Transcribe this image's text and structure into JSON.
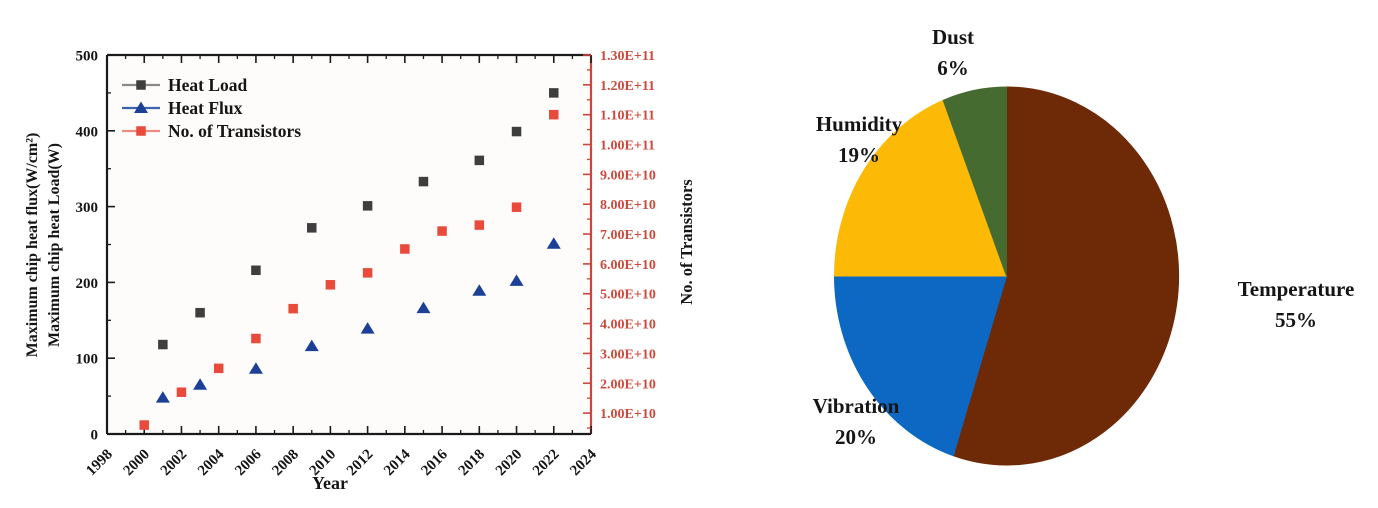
{
  "page": {
    "background": "#ffffff",
    "text_color": "#151515"
  },
  "chart_data": [
    {
      "type": "scatter",
      "title": "",
      "xlabel": "Year",
      "ylabel_left_lines": [
        "Maximum chip heat flux(W/cm²)",
        "Maximum chip heat Load(W)"
      ],
      "ylabel_right": "No. of Transistors",
      "xlim": [
        1998,
        2024
      ],
      "x_ticks": [
        1998,
        2000,
        2002,
        2004,
        2006,
        2008,
        2010,
        2012,
        2014,
        2016,
        2018,
        2020,
        2022,
        2024
      ],
      "ylim_left": [
        0,
        500
      ],
      "y_left_ticks": [
        0,
        100,
        200,
        300,
        400,
        500
      ],
      "ylim_right": [
        3000000000.0,
        130000000000.0
      ],
      "y_right_ticks": [
        10000000000.0,
        20000000000.0,
        30000000000.0,
        40000000000.0,
        50000000000.0,
        60000000000.0,
        70000000000.0,
        80000000000.0,
        90000000000.0,
        100000000000.0,
        110000000000.0,
        120000000000.0,
        130000000000.0
      ],
      "y_right_tick_labels": [
        "1.00E+10",
        "2.00E+10",
        "3.00E+10",
        "4.00E+10",
        "5.00E+10",
        "6.00E+10",
        "7.00E+10",
        "8.00E+10",
        "9.00E+10",
        "1.00E+11",
        "1.10E+11",
        "1.20E+11",
        "1.30E+11"
      ],
      "grid": false,
      "legend_position": "top-left-inside",
      "axis_colors": {
        "left": "#1a1a1a",
        "right": "#c9473b"
      },
      "series": [
        {
          "name": "Heat Load",
          "axis": "left",
          "marker": "square",
          "color": "#3e3e3e",
          "legend_line_color": "#8a8a8a",
          "points": [
            [
              2001,
              118
            ],
            [
              2003,
              160
            ],
            [
              2006,
              216
            ],
            [
              2009,
              272
            ],
            [
              2012,
              301
            ],
            [
              2015,
              333
            ],
            [
              2018,
              361
            ],
            [
              2020,
              399
            ],
            [
              2022,
              450
            ]
          ]
        },
        {
          "name": "Heat Flux",
          "axis": "left",
          "marker": "triangle",
          "color": "#1d4097",
          "legend_line_color": "#3b62ad",
          "points": [
            [
              2001,
              48
            ],
            [
              2003,
              65
            ],
            [
              2006,
              86
            ],
            [
              2009,
              116
            ],
            [
              2012,
              139
            ],
            [
              2015,
              166
            ],
            [
              2018,
              189
            ],
            [
              2020,
              202
            ],
            [
              2022,
              251
            ]
          ]
        },
        {
          "name": "No. of Transistors",
          "axis": "right",
          "marker": "square",
          "color": "#e84a3c",
          "legend_line_color": "#ef8c82",
          "points": [
            [
              2000,
              6000000000.0
            ],
            [
              2002,
              17000000000.0
            ],
            [
              2004,
              25000000000.0
            ],
            [
              2006,
              35000000000.0
            ],
            [
              2008,
              45000000000.0
            ],
            [
              2010,
              53000000000.0
            ],
            [
              2012,
              57000000000.0
            ],
            [
              2014,
              65000000000.0
            ],
            [
              2016,
              71000000000.0
            ],
            [
              2018,
              73000000000.0
            ],
            [
              2020,
              79000000000.0
            ],
            [
              2022,
              110000000000.0
            ]
          ]
        }
      ]
    },
    {
      "type": "pie",
      "title": "",
      "direction": "clockwise",
      "start_angle_deg_from_top": 0,
      "slices": [
        {
          "label": "Temperature",
          "pct": 55,
          "color": "#6e2a06"
        },
        {
          "label": "Vibration",
          "pct": 20,
          "color": "#0d68c3"
        },
        {
          "label": "Humidity",
          "pct": 19,
          "color": "#fcba07"
        },
        {
          "label": "Dust",
          "pct": 6,
          "color": "#456b31"
        }
      ],
      "label_format": "name newline pct%"
    }
  ]
}
